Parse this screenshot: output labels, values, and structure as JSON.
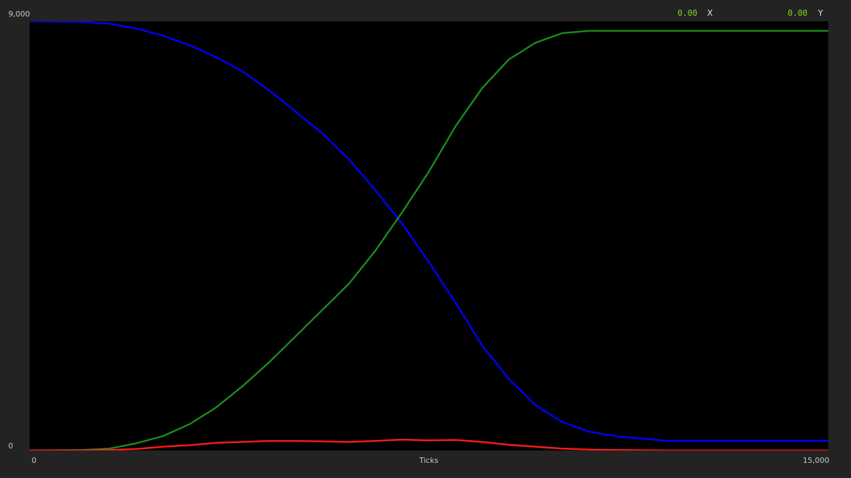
{
  "readout": {
    "x_value": "0.00",
    "x_label": "X",
    "y_value": "0.00",
    "y_label": "Y",
    "value_color": "#7fd11b"
  },
  "chart_data": {
    "type": "line",
    "title": "",
    "xlabel": "Ticks",
    "ylabel": "",
    "xlim": [
      0,
      15000
    ],
    "ylim": [
      0,
      9000
    ],
    "x_tick_labels": [
      "0",
      "15,000"
    ],
    "y_tick_labels": [
      "9,000",
      "0"
    ],
    "grid": false,
    "background": "#000000",
    "series": [
      {
        "color": "#0000ff",
        "x": [
          0,
          1000,
          1500,
          2000,
          2500,
          3000,
          3500,
          4000,
          4500,
          5000,
          5500,
          6000,
          6500,
          7000,
          7500,
          8000,
          8500,
          9000,
          9500,
          10000,
          10500,
          11000,
          12000,
          13000,
          14000,
          15000
        ],
        "y": [
          9000,
          8990,
          8950,
          8850,
          8700,
          8500,
          8250,
          7950,
          7550,
          7100,
          6650,
          6100,
          5450,
          4750,
          3950,
          3100,
          2200,
          1500,
          950,
          600,
          400,
          300,
          200,
          200,
          200,
          200
        ]
      },
      {
        "color": "#1a8c1a",
        "x": [
          0,
          1000,
          1500,
          2000,
          2500,
          3000,
          3500,
          4000,
          4500,
          5000,
          5500,
          6000,
          6500,
          7000,
          7500,
          8000,
          8500,
          9000,
          9500,
          10000,
          10500,
          11000,
          12000,
          13000,
          14000,
          15000
        ],
        "y": [
          0,
          10,
          40,
          150,
          300,
          550,
          900,
          1350,
          1850,
          2400,
          2950,
          3500,
          4200,
          5000,
          5850,
          6800,
          7600,
          8200,
          8550,
          8750,
          8800,
          8800,
          8800,
          8800,
          8800,
          8800
        ]
      },
      {
        "color": "#ff1a1a",
        "x": [
          0,
          1000,
          1500,
          2000,
          2500,
          3000,
          3500,
          4000,
          4500,
          5000,
          5500,
          6000,
          6500,
          7000,
          7500,
          8000,
          8500,
          9000,
          9500,
          10000,
          10500,
          11000,
          12000,
          13000,
          14000,
          15000
        ],
        "y": [
          0,
          0,
          10,
          30,
          80,
          110,
          160,
          180,
          200,
          200,
          190,
          180,
          200,
          230,
          210,
          220,
          180,
          120,
          80,
          40,
          20,
          10,
          0,
          0,
          0,
          0
        ]
      }
    ]
  }
}
